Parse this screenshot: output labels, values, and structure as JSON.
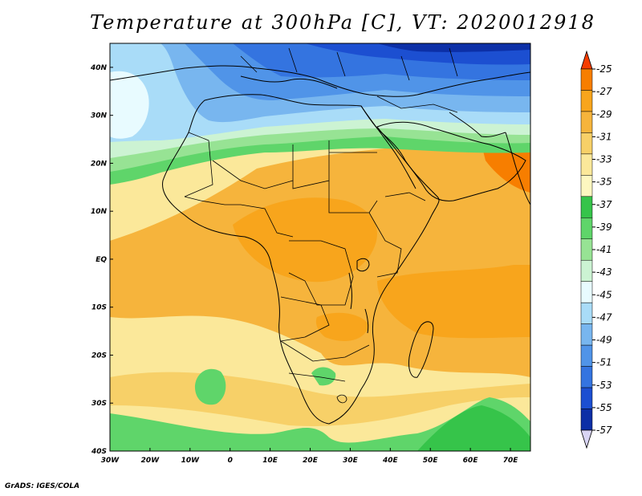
{
  "title": "Temperature at 300hPa [C], VT: 2020012918",
  "credit": "GrADS: IGES/COLA",
  "map": {
    "lon_range": [
      -30,
      75
    ],
    "lat_range": [
      -40,
      45
    ],
    "lon_ticks": [
      {
        "value": -30,
        "label": "30W"
      },
      {
        "value": -20,
        "label": "20W"
      },
      {
        "value": -10,
        "label": "10W"
      },
      {
        "value": 0,
        "label": "0"
      },
      {
        "value": 10,
        "label": "10E"
      },
      {
        "value": 20,
        "label": "20E"
      },
      {
        "value": 30,
        "label": "30E"
      },
      {
        "value": 40,
        "label": "40E"
      },
      {
        "value": 50,
        "label": "50E"
      },
      {
        "value": 60,
        "label": "60E"
      },
      {
        "value": 70,
        "label": "70E"
      }
    ],
    "lat_ticks": [
      {
        "value": 40,
        "label": "40N"
      },
      {
        "value": 30,
        "label": "30N"
      },
      {
        "value": 20,
        "label": "20N"
      },
      {
        "value": 10,
        "label": "10N"
      },
      {
        "value": 0,
        "label": "EQ"
      },
      {
        "value": -10,
        "label": "10S"
      },
      {
        "value": -20,
        "label": "20S"
      },
      {
        "value": -30,
        "label": "30S"
      },
      {
        "value": -40,
        "label": "40S"
      }
    ]
  },
  "colorbar": {
    "levels": [
      "-25",
      "-27",
      "-29",
      "-31",
      "-33",
      "-35",
      "-37",
      "-39",
      "-41",
      "-43",
      "-45",
      "-47",
      "-49",
      "-51",
      "-53",
      "-55",
      "-57"
    ],
    "colors": [
      "#f53c00",
      "#f77e00",
      "#f8a51c",
      "#f6b43c",
      "#f7d068",
      "#fbe89a",
      "#fdf7c0",
      "#36c44a",
      "#5fd56a",
      "#97e394",
      "#ccf3d3",
      "#e8fbff",
      "#a9dcf8",
      "#78b6ef",
      "#5094e8",
      "#3474e0",
      "#1c4fd1",
      "#0c2fa6",
      "#d9d5f5"
    ]
  },
  "field_colors": {
    "c25": "#f77e00",
    "c27": "#f8a51c",
    "c29": "#f6b43c",
    "c31": "#f7d068",
    "c33": "#fbe89a",
    "c35": "#fdf7c0",
    "c37": "#36c44a",
    "c39": "#5fd56a",
    "c41": "#97e394",
    "c43": "#ccf3d3",
    "c45": "#a9dcf8",
    "c47": "#78b6ef",
    "c49": "#5094e8",
    "c51": "#3474e0",
    "c53": "#1c4fd1",
    "c55": "#0c2fa6"
  }
}
